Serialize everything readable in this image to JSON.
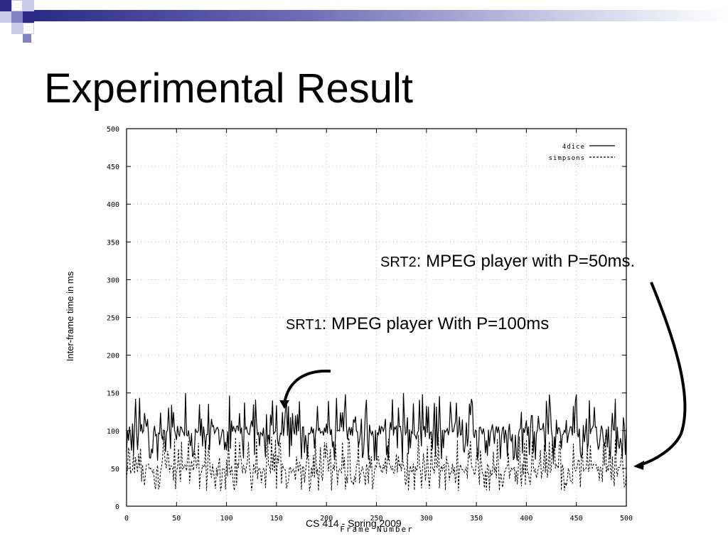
{
  "slide": {
    "title": "Experimental Result",
    "footer": "CS 414 - Spring 2009",
    "accent_colors": {
      "deco_dark": "#2b2a86",
      "deco_mid": "#8383c4",
      "deco_light": "#c9c9e6"
    }
  },
  "annotations": [
    {
      "prefix": "SRT2",
      "sep": ": ",
      "text": "MPEG player with P=50ms."
    },
    {
      "prefix": "SRT1",
      "sep": ": ",
      "text": "MPEG player With P=100ms"
    }
  ],
  "chart_data": {
    "type": "line",
    "xlabel": "Frame Number",
    "ylabel": "Inter-frame time in ms",
    "xlim": [
      0,
      500
    ],
    "ylim": [
      0,
      500
    ],
    "xticks": [
      0,
      50,
      100,
      150,
      200,
      250,
      300,
      350,
      400,
      450,
      500
    ],
    "yticks": [
      0,
      50,
      100,
      150,
      200,
      250,
      300,
      350,
      400,
      450,
      500
    ],
    "legend_position": "top-right",
    "series": [
      {
        "name": "4dice",
        "style": "solid",
        "baseline": 100,
        "jitter_low": 60,
        "jitter_high": 150,
        "frames": [
          0,
          500
        ]
      },
      {
        "name": "simpsons",
        "style": "dashed",
        "baseline": 50,
        "jitter_low": 20,
        "jitter_high": 95,
        "frames": [
          0,
          500
        ]
      }
    ]
  }
}
